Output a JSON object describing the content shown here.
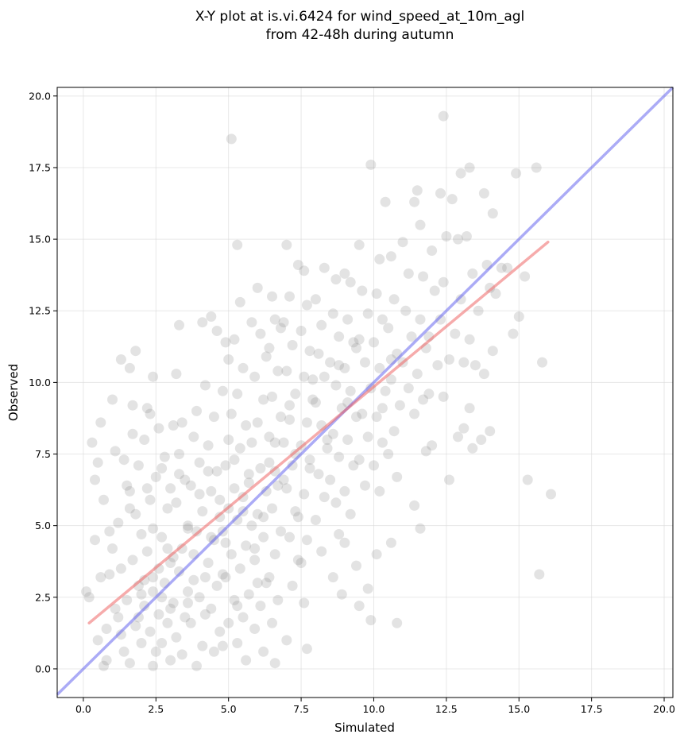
{
  "chart_data": {
    "type": "scatter",
    "title": "X-Y plot at is.vi.6424 for wind_speed_at_10m_agl",
    "subtitle": "from 42-48h during autumn",
    "xlabel": "Simulated",
    "ylabel": "Observed",
    "xlim": [
      -0.9,
      20.3
    ],
    "ylim": [
      -1.0,
      20.3
    ],
    "xticks": [
      0.0,
      2.5,
      5.0,
      7.5,
      10.0,
      12.5,
      15.0,
      17.5,
      20.0
    ],
    "yticks": [
      0.0,
      2.5,
      5.0,
      7.5,
      10.0,
      12.5,
      15.0,
      17.5,
      20.0
    ],
    "xtick_labels": [
      "0.0",
      "2.5",
      "5.0",
      "7.5",
      "10.0",
      "12.5",
      "15.0",
      "17.5",
      "20.0"
    ],
    "ytick_labels": [
      "0.0",
      "2.5",
      "5.0",
      "7.5",
      "10.0",
      "12.5",
      "15.0",
      "17.5",
      "20.0"
    ],
    "grid": true,
    "point_color": "#7f7f7f",
    "identity_line": {
      "from": [
        -0.9,
        -0.9
      ],
      "to": [
        20.3,
        20.3
      ],
      "color": "#6666ee"
    },
    "fit_line": {
      "from": [
        0.2,
        1.6
      ],
      "to": [
        16.0,
        14.9
      ],
      "color": "#ee6666"
    },
    "points": [
      [
        0.1,
        2.7
      ],
      [
        0.3,
        7.9
      ],
      [
        0.6,
        8.6
      ],
      [
        0.5,
        7.2
      ],
      [
        0.4,
        4.5
      ],
      [
        0.6,
        3.2
      ],
      [
        0.2,
        2.5
      ],
      [
        0.5,
        1.0
      ],
      [
        0.8,
        0.3
      ],
      [
        0.7,
        0.1
      ],
      [
        1.0,
        9.4
      ],
      [
        1.1,
        7.6
      ],
      [
        1.3,
        10.8
      ],
      [
        1.5,
        6.4
      ],
      [
        1.2,
        5.1
      ],
      [
        1.0,
        4.2
      ],
      [
        0.9,
        3.3
      ],
      [
        1.1,
        2.1
      ],
      [
        1.3,
        1.2
      ],
      [
        1.4,
        0.6
      ],
      [
        1.8,
        11.1
      ],
      [
        1.6,
        10.5
      ],
      [
        1.7,
        9.2
      ],
      [
        1.7,
        8.2
      ],
      [
        1.9,
        7.1
      ],
      [
        1.6,
        6.2
      ],
      [
        1.8,
        5.4
      ],
      [
        2.0,
        4.7
      ],
      [
        1.7,
        3.8
      ],
      [
        1.9,
        2.9
      ],
      [
        2.1,
        2.2
      ],
      [
        1.8,
        1.5
      ],
      [
        2.0,
        0.9
      ],
      [
        1.6,
        0.2
      ],
      [
        2.3,
        8.9
      ],
      [
        2.2,
        9.1
      ],
      [
        2.5,
        6.7
      ],
      [
        2.3,
        5.9
      ],
      [
        2.4,
        4.9
      ],
      [
        2.2,
        4.1
      ],
      [
        2.6,
        3.5
      ],
      [
        2.4,
        2.7
      ],
      [
        2.6,
        1.9
      ],
      [
        2.3,
        1.3
      ],
      [
        2.5,
        0.6
      ],
      [
        2.4,
        0.1
      ],
      [
        2.4,
        10.2
      ],
      [
        2.8,
        7.4
      ],
      [
        3.0,
        6.3
      ],
      [
        2.9,
        5.6
      ],
      [
        2.7,
        4.6
      ],
      [
        3.0,
        3.7
      ],
      [
        2.8,
        3.0
      ],
      [
        3.1,
        2.3
      ],
      [
        2.9,
        1.6
      ],
      [
        2.7,
        0.9
      ],
      [
        3.0,
        0.3
      ],
      [
        3.2,
        10.3
      ],
      [
        3.1,
        8.5
      ],
      [
        3.4,
        8.6
      ],
      [
        3.3,
        7.5
      ],
      [
        3.5,
        6.6
      ],
      [
        3.2,
        5.8
      ],
      [
        3.6,
        5.0
      ],
      [
        3.4,
        4.2
      ],
      [
        3.3,
        3.4
      ],
      [
        3.6,
        2.7
      ],
      [
        3.5,
        1.8
      ],
      [
        3.2,
        1.1
      ],
      [
        3.4,
        0.5
      ],
      [
        3.3,
        12.0
      ],
      [
        3.9,
        9.0
      ],
      [
        3.8,
        8.1
      ],
      [
        4.0,
        7.2
      ],
      [
        3.7,
        6.4
      ],
      [
        4.1,
        5.5
      ],
      [
        3.9,
        4.8
      ],
      [
        3.8,
        4.0
      ],
      [
        4.2,
        3.2
      ],
      [
        4.0,
        2.5
      ],
      [
        3.7,
        1.6
      ],
      [
        4.1,
        0.8
      ],
      [
        3.9,
        0.1
      ],
      [
        4.1,
        12.1
      ],
      [
        4.2,
        9.9
      ],
      [
        4.4,
        12.3
      ],
      [
        4.5,
        8.8
      ],
      [
        4.3,
        7.8
      ],
      [
        4.6,
        6.9
      ],
      [
        4.4,
        6.2
      ],
      [
        4.7,
        5.3
      ],
      [
        4.5,
        4.5
      ],
      [
        4.3,
        3.7
      ],
      [
        4.6,
        2.9
      ],
      [
        4.4,
        2.1
      ],
      [
        4.7,
        1.3
      ],
      [
        4.5,
        0.6
      ],
      [
        4.6,
        11.8
      ],
      [
        4.9,
        11.4
      ],
      [
        5.0,
        10.8
      ],
      [
        4.8,
        9.7
      ],
      [
        5.1,
        8.9
      ],
      [
        5.0,
        8.0
      ],
      [
        4.9,
        7.1
      ],
      [
        5.2,
        6.3
      ],
      [
        5.0,
        5.6
      ],
      [
        4.8,
        4.8
      ],
      [
        5.1,
        4.0
      ],
      [
        4.9,
        3.2
      ],
      [
        5.2,
        2.4
      ],
      [
        5.0,
        1.6
      ],
      [
        4.8,
        0.8
      ],
      [
        5.1,
        18.5
      ],
      [
        5.3,
        14.8
      ],
      [
        5.4,
        12.8
      ],
      [
        5.2,
        11.5
      ],
      [
        5.5,
        10.5
      ],
      [
        5.3,
        9.6
      ],
      [
        5.6,
        8.5
      ],
      [
        5.4,
        7.7
      ],
      [
        5.7,
        6.8
      ],
      [
        5.5,
        6.0
      ],
      [
        5.3,
        5.2
      ],
      [
        5.6,
        4.3
      ],
      [
        5.4,
        3.5
      ],
      [
        5.7,
        2.6
      ],
      [
        5.5,
        1.8
      ],
      [
        5.3,
        0.9
      ],
      [
        5.6,
        0.3
      ],
      [
        5.8,
        12.1
      ],
      [
        6.0,
        13.3
      ],
      [
        6.1,
        11.7
      ],
      [
        5.9,
        10.2
      ],
      [
        6.2,
        9.4
      ],
      [
        6.0,
        8.6
      ],
      [
        5.8,
        7.9
      ],
      [
        6.1,
        7.0
      ],
      [
        6.3,
        6.2
      ],
      [
        6.0,
        5.4
      ],
      [
        6.2,
        4.6
      ],
      [
        5.9,
        3.8
      ],
      [
        6.3,
        3.0
      ],
      [
        6.1,
        2.2
      ],
      [
        5.9,
        1.4
      ],
      [
        6.2,
        0.6
      ],
      [
        6.5,
        13.0
      ],
      [
        6.6,
        12.2
      ],
      [
        6.4,
        11.2
      ],
      [
        6.7,
        10.4
      ],
      [
        6.5,
        9.5
      ],
      [
        6.8,
        8.8
      ],
      [
        6.6,
        7.9
      ],
      [
        6.4,
        7.2
      ],
      [
        6.7,
        6.4
      ],
      [
        6.5,
        5.6
      ],
      [
        6.8,
        4.8
      ],
      [
        6.6,
        4.0
      ],
      [
        6.4,
        3.2
      ],
      [
        6.7,
        2.4
      ],
      [
        6.5,
        1.6
      ],
      [
        6.6,
        0.2
      ],
      [
        7.0,
        14.8
      ],
      [
        7.1,
        13.0
      ],
      [
        6.9,
        12.1
      ],
      [
        7.2,
        11.3
      ],
      [
        7.0,
        10.4
      ],
      [
        7.3,
        9.6
      ],
      [
        7.1,
        8.7
      ],
      [
        6.9,
        7.9
      ],
      [
        7.2,
        7.1
      ],
      [
        7.0,
        6.3
      ],
      [
        7.3,
        5.5
      ],
      [
        7.1,
        4.6
      ],
      [
        7.4,
        3.8
      ],
      [
        7.2,
        2.9
      ],
      [
        7.0,
        1.0
      ],
      [
        7.4,
        14.1
      ],
      [
        7.6,
        13.9
      ],
      [
        7.7,
        12.7
      ],
      [
        7.5,
        11.8
      ],
      [
        7.8,
        11.1
      ],
      [
        7.6,
        10.2
      ],
      [
        7.9,
        9.4
      ],
      [
        7.7,
        8.6
      ],
      [
        7.5,
        7.8
      ],
      [
        7.8,
        7.0
      ],
      [
        7.6,
        6.1
      ],
      [
        7.4,
        5.3
      ],
      [
        7.7,
        4.5
      ],
      [
        7.5,
        3.7
      ],
      [
        7.6,
        2.3
      ],
      [
        7.7,
        0.7
      ],
      [
        8.0,
        12.9
      ],
      [
        8.2,
        12.0
      ],
      [
        8.1,
        11.0
      ],
      [
        8.3,
        10.2
      ],
      [
        8.0,
        9.3
      ],
      [
        8.2,
        8.5
      ],
      [
        8.4,
        7.7
      ],
      [
        8.1,
        6.8
      ],
      [
        8.3,
        6.0
      ],
      [
        8.0,
        5.2
      ],
      [
        8.2,
        4.1
      ],
      [
        8.3,
        14.0
      ],
      [
        8.7,
        13.6
      ],
      [
        8.6,
        12.4
      ],
      [
        8.8,
        11.6
      ],
      [
        8.5,
        10.7
      ],
      [
        8.7,
        9.9
      ],
      [
        8.9,
        9.1
      ],
      [
        8.6,
        8.2
      ],
      [
        8.8,
        7.4
      ],
      [
        8.5,
        6.6
      ],
      [
        8.7,
        5.8
      ],
      [
        8.8,
        4.7
      ],
      [
        8.6,
        3.2
      ],
      [
        8.9,
        2.6
      ],
      [
        9.0,
        13.8
      ],
      [
        9.2,
        13.5
      ],
      [
        9.1,
        12.2
      ],
      [
        9.3,
        11.4
      ],
      [
        9.0,
        10.5
      ],
      [
        9.2,
        9.7
      ],
      [
        9.4,
        8.8
      ],
      [
        9.1,
        8.0
      ],
      [
        9.3,
        7.1
      ],
      [
        9.0,
        6.2
      ],
      [
        9.2,
        5.4
      ],
      [
        9.0,
        4.4
      ],
      [
        9.5,
        14.8
      ],
      [
        9.6,
        13.2
      ],
      [
        9.8,
        12.4
      ],
      [
        9.5,
        11.5
      ],
      [
        9.7,
        10.7
      ],
      [
        9.9,
        9.8
      ],
      [
        9.6,
        8.9
      ],
      [
        9.8,
        8.1
      ],
      [
        9.5,
        7.3
      ],
      [
        9.7,
        6.4
      ],
      [
        9.4,
        3.6
      ],
      [
        9.5,
        2.2
      ],
      [
        9.8,
        2.8
      ],
      [
        9.9,
        1.7
      ],
      [
        9.9,
        17.6
      ],
      [
        10.2,
        14.3
      ],
      [
        10.1,
        13.1
      ],
      [
        10.3,
        12.2
      ],
      [
        10.0,
        11.4
      ],
      [
        10.2,
        10.5
      ],
      [
        10.4,
        9.7
      ],
      [
        10.1,
        8.8
      ],
      [
        10.3,
        7.9
      ],
      [
        10.0,
        7.1
      ],
      [
        10.2,
        6.2
      ],
      [
        10.1,
        4.0
      ],
      [
        10.4,
        16.3
      ],
      [
        10.6,
        14.4
      ],
      [
        10.7,
        12.9
      ],
      [
        10.5,
        11.9
      ],
      [
        10.8,
        11.0
      ],
      [
        10.6,
        10.1
      ],
      [
        10.9,
        9.2
      ],
      [
        10.7,
        8.3
      ],
      [
        10.5,
        7.5
      ],
      [
        10.8,
        6.7
      ],
      [
        10.6,
        4.4
      ],
      [
        10.8,
        1.6
      ],
      [
        11.0,
        14.9
      ],
      [
        11.2,
        13.8
      ],
      [
        11.1,
        12.5
      ],
      [
        11.3,
        11.6
      ],
      [
        11.0,
        10.7
      ],
      [
        11.2,
        9.8
      ],
      [
        11.4,
        8.9
      ],
      [
        11.5,
        16.7
      ],
      [
        11.4,
        16.3
      ],
      [
        11.7,
        13.7
      ],
      [
        11.6,
        12.2
      ],
      [
        11.8,
        11.2
      ],
      [
        11.5,
        10.3
      ],
      [
        11.7,
        9.4
      ],
      [
        11.4,
        5.7
      ],
      [
        11.6,
        4.9
      ],
      [
        11.6,
        15.5
      ],
      [
        12.0,
        14.6
      ],
      [
        12.1,
        13.2
      ],
      [
        11.9,
        11.6
      ],
      [
        12.2,
        10.6
      ],
      [
        11.9,
        9.6
      ],
      [
        12.0,
        7.8
      ],
      [
        11.8,
        7.6
      ],
      [
        12.3,
        16.6
      ],
      [
        12.5,
        15.1
      ],
      [
        12.4,
        13.5
      ],
      [
        12.3,
        12.2
      ],
      [
        12.6,
        10.8
      ],
      [
        12.4,
        9.5
      ],
      [
        12.6,
        6.6
      ],
      [
        12.4,
        19.3
      ],
      [
        12.7,
        16.4
      ],
      [
        12.9,
        15.0
      ],
      [
        13.0,
        12.9
      ],
      [
        12.8,
        11.7
      ],
      [
        13.1,
        10.7
      ],
      [
        12.9,
        8.1
      ],
      [
        13.1,
        8.4
      ],
      [
        13.0,
        17.3
      ],
      [
        13.3,
        17.5
      ],
      [
        13.2,
        15.1
      ],
      [
        13.4,
        13.8
      ],
      [
        13.6,
        12.5
      ],
      [
        13.3,
        11.5
      ],
      [
        13.5,
        10.6
      ],
      [
        13.4,
        7.7
      ],
      [
        13.8,
        16.6
      ],
      [
        13.9,
        14.1
      ],
      [
        14.0,
        13.3
      ],
      [
        13.8,
        10.3
      ],
      [
        14.1,
        11.1
      ],
      [
        14.0,
        8.3
      ],
      [
        14.1,
        15.9
      ],
      [
        14.2,
        13.1
      ],
      [
        14.4,
        14.0
      ],
      [
        14.6,
        14.0
      ],
      [
        14.8,
        11.7
      ],
      [
        14.9,
        17.3
      ],
      [
        15.0,
        12.3
      ],
      [
        15.2,
        13.7
      ],
      [
        15.3,
        6.6
      ],
      [
        15.6,
        17.5
      ],
      [
        15.7,
        3.3
      ],
      [
        15.8,
        10.7
      ],
      [
        16.1,
        6.1
      ],
      [
        13.7,
        8.0
      ],
      [
        13.3,
        9.1
      ],
      [
        6.3,
        10.9
      ],
      [
        6.8,
        11.9
      ],
      [
        5.7,
        6.5
      ],
      [
        4.3,
        6.9
      ],
      [
        3.6,
        4.9
      ],
      [
        2.9,
        4.2
      ],
      [
        2.1,
        3.1
      ],
      [
        1.5,
        2.4
      ],
      [
        1.2,
        1.8
      ],
      [
        0.8,
        1.4
      ],
      [
        2.7,
        2.5
      ],
      [
        3.8,
        3.1
      ],
      [
        4.9,
        4.4
      ],
      [
        5.8,
        5.0
      ],
      [
        6.9,
        6.6
      ],
      [
        7.3,
        7.5
      ],
      [
        8.4,
        8.0
      ],
      [
        9.1,
        9.3
      ],
      [
        10.3,
        9.1
      ],
      [
        3.1,
        3.9
      ],
      [
        4.4,
        4.6
      ],
      [
        5.5,
        5.5
      ],
      [
        6.6,
        6.9
      ],
      [
        7.8,
        7.3
      ],
      [
        2.4,
        3.2
      ],
      [
        1.9,
        1.8
      ],
      [
        3.6,
        2.3
      ],
      [
        4.8,
        3.3
      ],
      [
        5.9,
        4.2
      ],
      [
        6.2,
        5.3
      ],
      [
        2.0,
        2.6
      ],
      [
        3.0,
        2.1
      ],
      [
        4.2,
        1.9
      ],
      [
        5.3,
        2.2
      ],
      [
        6.0,
        3.0
      ],
      [
        1.3,
        3.5
      ],
      [
        0.9,
        4.8
      ],
      [
        1.6,
        5.6
      ],
      [
        2.2,
        6.3
      ],
      [
        2.7,
        7.0
      ],
      [
        3.3,
        6.8
      ],
      [
        4.0,
        6.1
      ],
      [
        4.7,
        5.9
      ],
      [
        5.2,
        7.3
      ],
      [
        6.4,
        8.1
      ],
      [
        7.1,
        9.2
      ],
      [
        7.9,
        10.1
      ],
      [
        8.8,
        10.6
      ],
      [
        9.4,
        11.2
      ],
      [
        10.6,
        10.8
      ],
      [
        0.4,
        6.6
      ],
      [
        0.7,
        5.9
      ],
      [
        1.4,
        7.3
      ],
      [
        2.1,
        8.0
      ],
      [
        2.6,
        8.4
      ]
    ]
  }
}
